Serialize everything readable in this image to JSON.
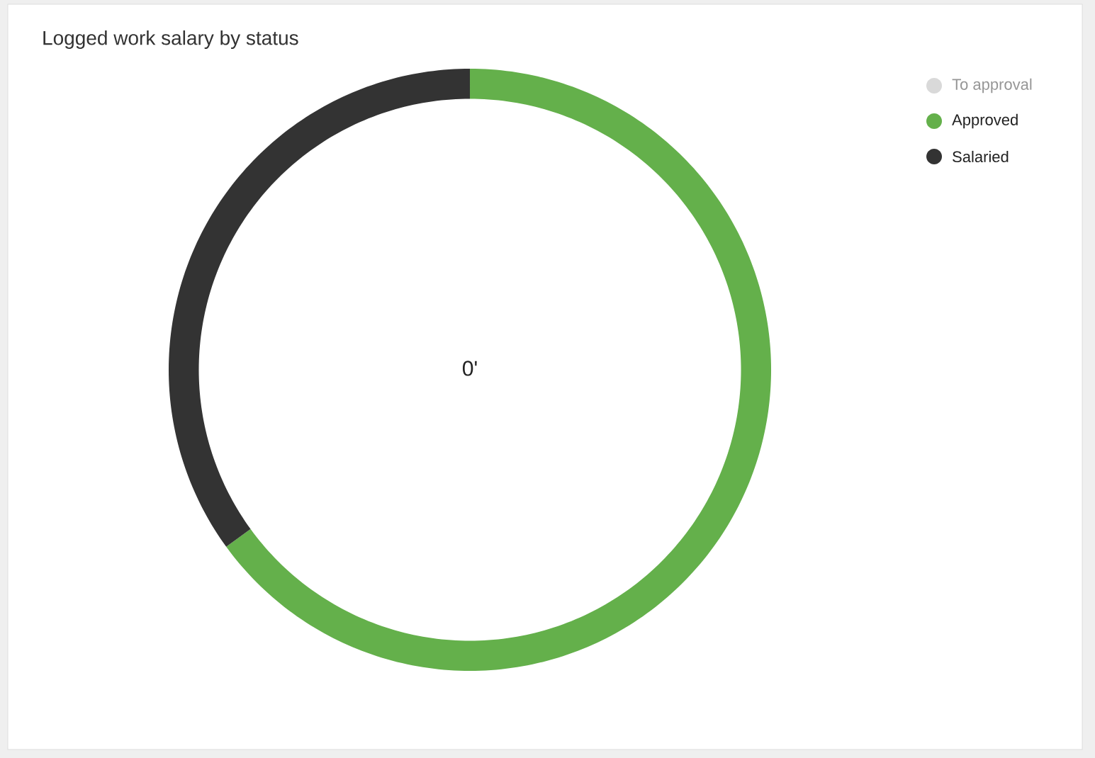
{
  "chart_data": {
    "type": "donut",
    "title": "Logged work salary by status",
    "categories": [
      "To approval",
      "Approved",
      "Salaried"
    ],
    "values": [
      0,
      65,
      35
    ],
    "colors": [
      "#d9d9d9",
      "#64b04b",
      "#333333"
    ],
    "annotations": [
      "0'"
    ],
    "legend": "top right"
  }
}
